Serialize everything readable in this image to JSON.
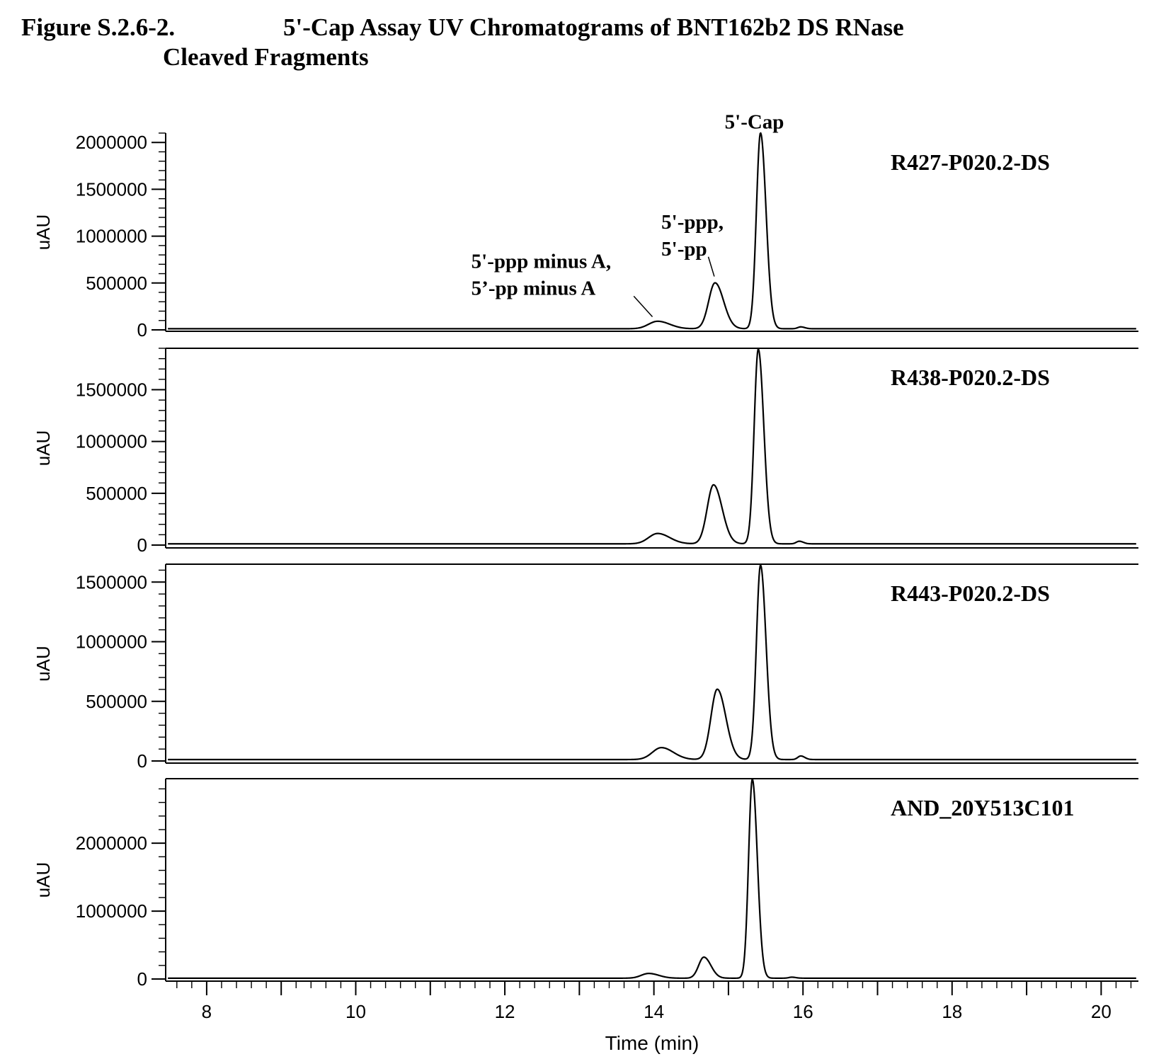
{
  "figure": {
    "number": "Figure S.2.6-2.",
    "title_line1": "5'-Cap Assay UV Chromatograms of BNT162b2 DS RNase",
    "title_line2": "Cleaved Fragments"
  },
  "chart_data": {
    "type": "line",
    "xlabel": "Time (min)",
    "xlim": [
      7.45,
      20.5
    ],
    "x_ticks": [
      8,
      10,
      12,
      14,
      16,
      18,
      20
    ],
    "baseline": 12000,
    "panels": [
      {
        "name": "R427-P020.2-DS",
        "ylabel": "uAU",
        "ylim": [
          0,
          2100000
        ],
        "y_ticks": [
          0,
          500000,
          1000000,
          1500000,
          2000000
        ],
        "peaks": [
          {
            "t": 14.05,
            "height": 80000,
            "width": 0.12
          },
          {
            "t": 14.82,
            "height": 490000,
            "width": 0.085
          },
          {
            "t": 15.43,
            "height": 2090000,
            "width": 0.055
          },
          {
            "t": 15.97,
            "height": 20000,
            "width": 0.04
          }
        ],
        "annotations": [
          {
            "lines": [
              "5'-Cap"
            ],
            "x": 14.95,
            "y": 2150000,
            "leader": null
          },
          {
            "lines": [
              "5'-ppp,",
              "5'-pp"
            ],
            "x": 14.1,
            "y": 1080000,
            "leader": [
              14.73,
              780000,
              14.81,
              570000
            ]
          },
          {
            "lines": [
              "5'-ppp minus A,",
              "5’-pp minus A"
            ],
            "x": 11.55,
            "y": 660000,
            "leader": [
              13.73,
              360000,
              13.98,
              140000
            ]
          }
        ]
      },
      {
        "name": "R438-P020.2-DS",
        "ylabel": "uAU",
        "ylim": [
          0,
          1900000
        ],
        "y_ticks": [
          0,
          500000,
          1000000,
          1500000
        ],
        "peaks": [
          {
            "t": 14.05,
            "height": 100000,
            "width": 0.12
          },
          {
            "t": 14.8,
            "height": 570000,
            "width": 0.085
          },
          {
            "t": 15.4,
            "height": 1880000,
            "width": 0.055
          },
          {
            "t": 15.95,
            "height": 25000,
            "width": 0.04
          }
        ],
        "annotations": []
      },
      {
        "name": "R443-P020.2-DS",
        "ylabel": "uAU",
        "ylim": [
          0,
          1650000
        ],
        "y_ticks": [
          0,
          500000,
          1000000,
          1500000
        ],
        "peaks": [
          {
            "t": 14.1,
            "height": 100000,
            "width": 0.12
          },
          {
            "t": 14.85,
            "height": 590000,
            "width": 0.085
          },
          {
            "t": 15.43,
            "height": 1630000,
            "width": 0.055
          },
          {
            "t": 15.97,
            "height": 30000,
            "width": 0.04
          }
        ],
        "annotations": []
      },
      {
        "name": "AND_20Y513C101",
        "ylabel": "uAU",
        "ylim": [
          0,
          2950000
        ],
        "y_ticks": [
          0,
          1000000,
          2000000
        ],
        "peaks": [
          {
            "t": 13.93,
            "height": 70000,
            "width": 0.1
          },
          {
            "t": 14.67,
            "height": 310000,
            "width": 0.07
          },
          {
            "t": 15.32,
            "height": 2930000,
            "width": 0.05
          },
          {
            "t": 15.85,
            "height": 15000,
            "width": 0.04
          }
        ],
        "annotations": []
      }
    ]
  }
}
